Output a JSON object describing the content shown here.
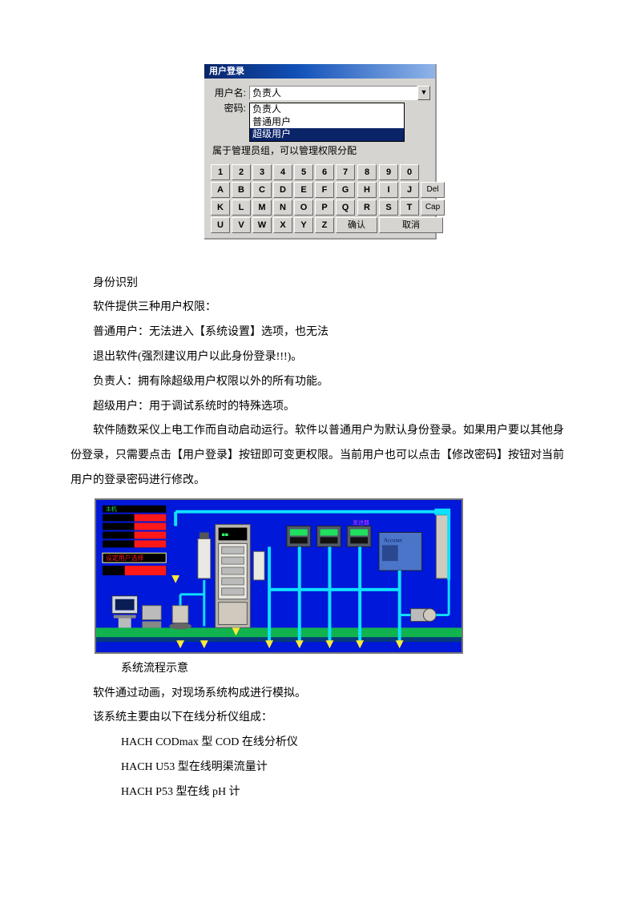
{
  "login": {
    "title": "用户登录",
    "username_label": "用户名:",
    "password_label": "密码:",
    "username_value": "负责人",
    "options": [
      "负责人",
      "普通用户",
      "超级用户"
    ],
    "selected_index": 2,
    "description": "属于管理员组，可以管理权限分配",
    "ok_label": "确认",
    "cancel_label": "取消",
    "keys_row1": [
      "1",
      "2",
      "3",
      "4",
      "5",
      "6",
      "7",
      "8",
      "9",
      "0"
    ],
    "keys_row2": [
      "A",
      "B",
      "C",
      "D",
      "E",
      "F",
      "G",
      "H",
      "I",
      "J"
    ],
    "keys_row2_extra": "Del",
    "keys_row3": [
      "K",
      "L",
      "M",
      "N",
      "O",
      "P",
      "Q",
      "R",
      "S",
      "T"
    ],
    "keys_row3_extra": "Cap",
    "keys_row4": [
      "U",
      "V",
      "W",
      "X",
      "Y",
      "Z"
    ]
  },
  "text": {
    "p1": "身份识别",
    "p2": "软件提供三种用户权限：",
    "p3": "普通用户：无法进入【系统设置】选项，也无法",
    "p4": "退出软件(强烈建议用户以此身份登录!!!)。",
    "p5": "负责人：拥有除超级用户权限以外的所有功能。",
    "p6": "超级用户：用于调试系统时的特殊选项。",
    "p7": "软件随数采仪上电工作而自动启动运行。软件以普通用户为默认身份登录。如果用户要以其他身份登录，只需要点击【用户登录】按钮即可变更权限。当前用户也可以点击【修改密码】按钮对当前用户的登录密码进行修改。",
    "caption": "系统流程示意",
    "p8": "软件通过动画，对现场系统构成进行模拟。",
    "p9": "该系统主要由以下在线分析仪组成：",
    "b1": "HACH CODmax 型 COD 在线分析仪",
    "b2": "HACH U53 型在线明渠流量计",
    "b3": "HACH P53 型在线 pH 计"
  },
  "flow": {
    "bg": "#0018d9",
    "ground": "#11b34e",
    "pipe": "#0fe0ff",
    "panel": "#b9b6ae",
    "display_red": "#ff1818",
    "display_green": "#20e060",
    "panel_label": "设定用户选择",
    "box_blue": "#4b75c9",
    "box_dark": "#535b68",
    "arrow": "#ffe93a"
  }
}
